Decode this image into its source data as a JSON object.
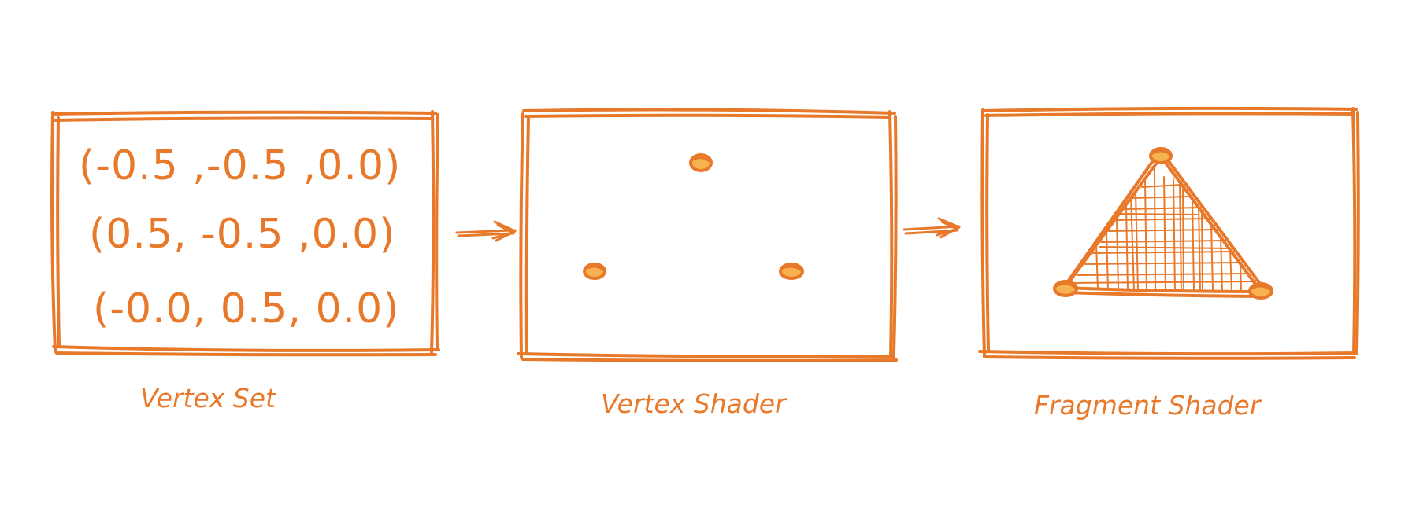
{
  "colors": {
    "stroke": "#e8792a",
    "dot_fill": "#f6b24e",
    "background": "#ffffff"
  },
  "panels": [
    {
      "caption": "Vertex Set",
      "vertices": [
        "(-0.5 ,-0.5 ,0.0)",
        "(0.5, -0.5 ,0.0)",
        "(-0.0, 0.5, 0.0)"
      ]
    },
    {
      "caption": "Vertex Shader"
    },
    {
      "caption": "Fragment Shader"
    }
  ]
}
